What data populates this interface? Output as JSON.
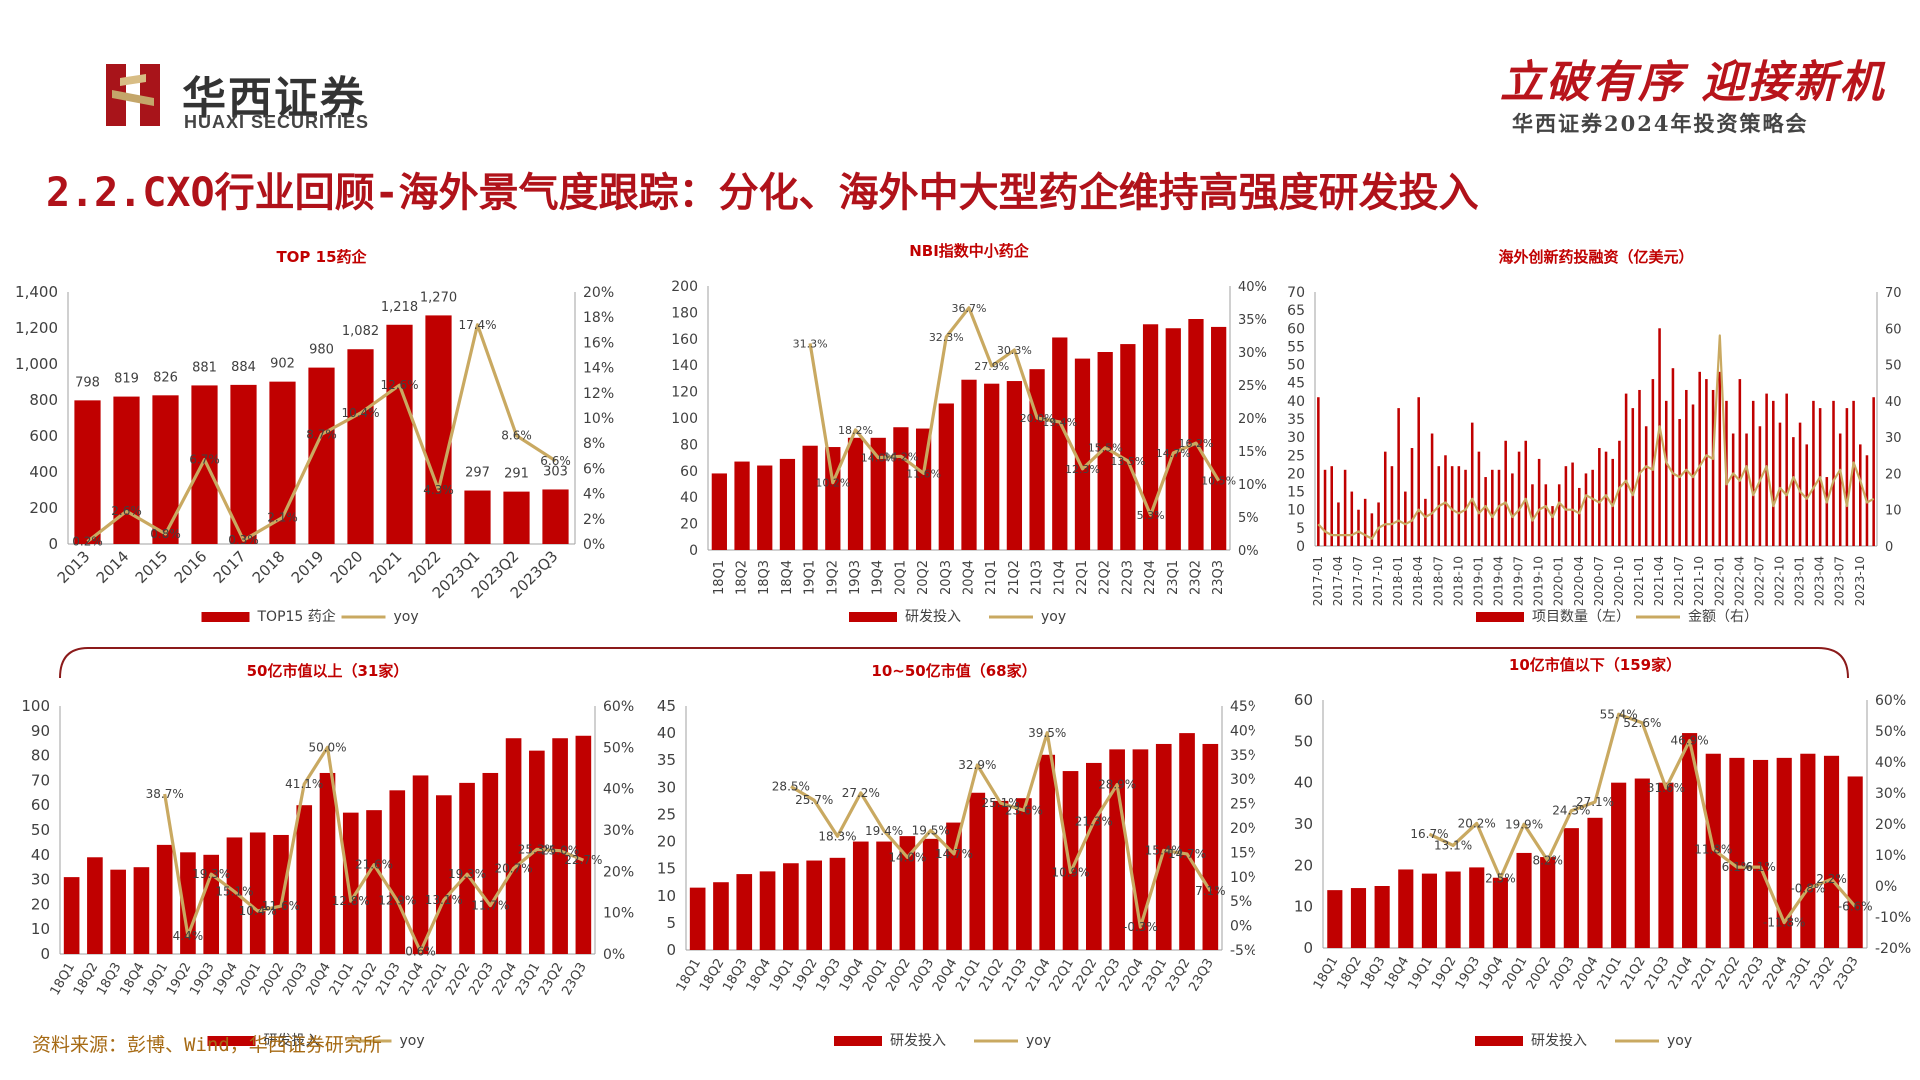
{
  "header": {
    "brand_cn": "华西证券",
    "brand_en": "HUAXI SECURITIES",
    "slogan": "立破有序 迎接新机",
    "sub_slogan": "华西证券2024年投资策略会",
    "title": "2.2.CXO行业回顾-海外景气度跟踪：分化、海外中大型药企维持高强度研发投入"
  },
  "footer": {
    "source": "资料来源：彭博、Wind，华西证券研究所"
  },
  "colors": {
    "bar": "#c00000",
    "line": "#c9a961",
    "title": "#b0121a",
    "panel_title": "#c00000"
  },
  "chart_data": [
    {
      "type": "bar",
      "title": "TOP 15药企",
      "categories": [
        "2013",
        "2014",
        "2015",
        "2016",
        "2017",
        "2018",
        "2019",
        "2020",
        "2021",
        "2022",
        "2023Q1",
        "2023Q2",
        "2023Q3"
      ],
      "series": [
        {
          "name": "TOP15 药企",
          "type": "bar",
          "axis": "left",
          "values": [
            798,
            819,
            826,
            881,
            884,
            902,
            980,
            1082,
            1218,
            1270,
            297,
            291,
            303
          ]
        },
        {
          "name": "yoy",
          "type": "line",
          "axis": "right",
          "values": [
            0.2,
            2.6,
            0.8,
            6.7,
            0.3,
            2.1,
            8.7,
            10.4,
            12.6,
            4.3,
            17.4,
            8.6,
            6.6
          ]
        }
      ],
      "bar_labels": [
        "798",
        "819",
        "826",
        "881",
        "884",
        "902",
        "980",
        "1,082",
        "1,218",
        "1,270",
        "297",
        "291",
        "303"
      ],
      "line_labels": [
        "0.2%",
        "2.6%",
        "0.8%",
        "6.7%",
        "0.3%",
        "2.1%",
        "8.7%",
        "10.4%",
        "12.6%",
        "4.3%",
        "17.4%",
        "8.6%",
        "6.6%"
      ],
      "ylim_left": [
        0,
        1400
      ],
      "yticks_left": [
        "0",
        "200",
        "400",
        "600",
        "800",
        "1,000",
        "1,200",
        "1,400"
      ],
      "ylim_right": [
        0,
        20
      ],
      "yticks_right": [
        "0%",
        "2%",
        "4%",
        "6%",
        "8%",
        "10%",
        "12%",
        "14%",
        "16%",
        "18%",
        "20%"
      ],
      "legend": "bottom"
    },
    {
      "type": "bar",
      "title": "NBI指数中小药企",
      "categories": [
        "18Q1",
        "18Q2",
        "18Q3",
        "18Q4",
        "19Q1",
        "19Q2",
        "19Q3",
        "19Q4",
        "20Q1",
        "20Q2",
        "20Q3",
        "20Q4",
        "21Q1",
        "21Q2",
        "21Q3",
        "21Q4",
        "22Q1",
        "22Q2",
        "22Q3",
        "22Q4",
        "23Q1",
        "23Q2",
        "23Q3"
      ],
      "series": [
        {
          "name": "研发投入",
          "type": "bar",
          "axis": "left",
          "values": [
            58,
            67,
            64,
            69,
            79,
            78,
            85,
            85,
            93,
            92,
            111,
            129,
            126,
            128,
            137,
            161,
            145,
            150,
            156,
            171,
            168,
            175,
            169
          ]
        },
        {
          "name": "yoy",
          "type": "line",
          "axis": "right",
          "values": [
            null,
            null,
            null,
            null,
            31.3,
            10.2,
            18.2,
            14.0,
            14.2,
            11.6,
            32.3,
            36.7,
            27.9,
            30.3,
            20.0,
            19.4,
            12.3,
            15.5,
            13.5,
            5.3,
            14.7,
            16.2,
            10.5
          ]
        }
      ],
      "line_labels": [
        "",
        "",
        "",
        "",
        "31.3%",
        "10.2%",
        "18.2%",
        "14.0%",
        "14.2%",
        "11.6%",
        "32.3%",
        "36.7%",
        "27.9%",
        "30.3%",
        "20.0%",
        "19.4%",
        "12.3%",
        "15.5%",
        "13.5%",
        "5.3%",
        "14.7%",
        "16.2%",
        "10.5%"
      ],
      "ylim_left": [
        0,
        200
      ],
      "yticks_left": [
        "0",
        "20",
        "40",
        "60",
        "80",
        "100",
        "120",
        "140",
        "160",
        "180",
        "200"
      ],
      "ylim_right": [
        0,
        40
      ],
      "yticks_right": [
        "0%",
        "5%",
        "10%",
        "15%",
        "20%",
        "25%",
        "30%",
        "35%",
        "40%"
      ],
      "legend": "bottom"
    },
    {
      "type": "bar",
      "title": "海外创新药投融资（亿美元）",
      "categories": [
        "2017-01",
        "2017-02",
        "2017-03",
        "2017-04",
        "2017-05",
        "2017-06",
        "2017-07",
        "2017-08",
        "2017-09",
        "2017-10",
        "2017-11",
        "2017-12",
        "2018-01",
        "2018-02",
        "2018-03",
        "2018-04",
        "2018-05",
        "2018-06",
        "2018-07",
        "2018-08",
        "2018-09",
        "2018-10",
        "2018-11",
        "2018-12",
        "2019-01",
        "2019-02",
        "2019-03",
        "2019-04",
        "2019-05",
        "2019-06",
        "2019-07",
        "2019-08",
        "2019-09",
        "2019-10",
        "2019-11",
        "2019-12",
        "2020-01",
        "2020-02",
        "2020-03",
        "2020-04",
        "2020-05",
        "2020-06",
        "2020-07",
        "2020-08",
        "2020-09",
        "2020-10",
        "2020-11",
        "2020-12",
        "2021-01",
        "2021-02",
        "2021-03",
        "2021-04",
        "2021-05",
        "2021-06",
        "2021-07",
        "2021-08",
        "2021-09",
        "2021-10",
        "2021-11",
        "2021-12",
        "2022-01",
        "2022-02",
        "2022-03",
        "2022-04",
        "2022-05",
        "2022-06",
        "2022-07",
        "2022-08",
        "2022-09",
        "2022-10",
        "2022-11",
        "2022-12",
        "2023-01",
        "2023-02",
        "2023-03",
        "2023-04",
        "2023-05",
        "2023-06",
        "2023-07",
        "2023-08",
        "2023-09",
        "2023-10",
        "2023-11",
        "2023-12"
      ],
      "xtick_labels": [
        "2017-01",
        "2017-04",
        "2017-07",
        "2017-10",
        "2018-01",
        "2018-04",
        "2018-07",
        "2018-10",
        "2019-01",
        "2019-04",
        "2019-07",
        "2019-10",
        "2020-01",
        "2020-04",
        "2020-07",
        "2020-10",
        "2021-01",
        "2021-04",
        "2021-07",
        "2021-10",
        "2022-01",
        "2022-04",
        "2022-07",
        "2022-10",
        "2023-01",
        "2023-04",
        "2023-07",
        "2023-10"
      ],
      "series": [
        {
          "name": "项目数量（左）",
          "type": "bar",
          "axis": "left",
          "values": [
            41,
            21,
            22,
            12,
            21,
            15,
            10,
            13,
            9,
            12,
            26,
            22,
            38,
            15,
            27,
            41,
            13,
            31,
            22,
            25,
            22,
            22,
            21,
            34,
            26,
            19,
            21,
            21,
            29,
            20,
            26,
            29,
            17,
            24,
            17,
            11,
            17,
            22,
            23,
            16,
            20,
            21,
            27,
            26,
            24,
            29,
            42,
            38,
            43,
            33,
            46,
            60,
            40,
            49,
            35,
            43,
            39,
            48,
            46,
            43,
            48,
            40,
            31,
            46,
            31,
            40,
            33,
            42,
            40,
            34,
            42,
            30,
            34,
            28,
            40,
            38,
            19,
            40,
            31,
            38,
            40,
            28,
            25,
            41
          ]
        },
        {
          "name": "金额（右）",
          "type": "line",
          "axis": "right",
          "values": [
            6,
            4,
            3,
            3,
            3,
            3,
            4,
            3,
            2,
            5,
            6,
            6,
            7,
            6,
            7,
            10,
            8,
            9,
            11,
            12,
            10,
            9,
            10,
            13,
            9,
            11,
            8,
            11,
            12,
            8,
            10,
            13,
            7,
            10,
            11,
            8,
            12,
            10,
            10,
            9,
            14,
            13,
            12,
            14,
            11,
            16,
            18,
            14,
            20,
            22,
            21,
            33,
            23,
            20,
            19,
            21,
            19,
            22,
            25,
            24,
            58,
            17,
            20,
            18,
            22,
            14,
            18,
            22,
            11,
            16,
            14,
            19,
            15,
            13,
            16,
            19,
            12,
            18,
            21,
            11,
            23,
            18,
            12,
            13
          ]
        }
      ],
      "ylim_left": [
        0,
        70
      ],
      "yticks_left": [
        "0",
        "5",
        "10",
        "15",
        "20",
        "25",
        "30",
        "35",
        "40",
        "45",
        "50",
        "55",
        "60",
        "65",
        "70"
      ],
      "ylim_right": [
        0,
        70
      ],
      "yticks_right": [
        "0",
        "10",
        "20",
        "30",
        "40",
        "50",
        "60",
        "70"
      ],
      "legend": "bottom"
    },
    {
      "type": "bar",
      "title": "50亿市值以上（31家）",
      "categories": [
        "18Q1",
        "18Q2",
        "18Q3",
        "18Q4",
        "19Q1",
        "19Q2",
        "19Q3",
        "19Q4",
        "20Q1",
        "20Q2",
        "20Q3",
        "20Q4",
        "21Q1",
        "21Q2",
        "21Q3",
        "21Q4",
        "22Q1",
        "22Q2",
        "22Q3",
        "22Q4",
        "23Q1",
        "23Q2",
        "23Q3"
      ],
      "series": [
        {
          "name": "研发投入",
          "type": "bar",
          "axis": "left",
          "values": [
            31,
            39,
            34,
            35,
            44,
            41,
            40,
            47,
            49,
            48,
            60,
            73,
            57,
            58,
            66,
            72,
            64,
            69,
            73,
            87,
            82,
            87,
            88
          ]
        },
        {
          "name": "yoy",
          "type": "line",
          "axis": "right",
          "values": [
            null,
            null,
            null,
            null,
            38.7,
            4.4,
            19.3,
            15.1,
            10.4,
            11.6,
            41.1,
            50.0,
            12.8,
            21.6,
            12.9,
            0.6,
            13.1,
            19.3,
            11.7,
            20.7,
            25.3,
            25.0,
            22.7
          ]
        }
      ],
      "line_labels": [
        "",
        "",
        "",
        "",
        "38.7%",
        "4.4%",
        "19.3%",
        "15.1%",
        "10.4%",
        "11.6%",
        "41.1%",
        "50.0%",
        "12.8%",
        "21.6%",
        "12.9%",
        "0.6%",
        "13.1%",
        "19.3%",
        "11.7%",
        "20.7%",
        "25.3%",
        "25.0%",
        "22.7%"
      ],
      "ylim_left": [
        0,
        100
      ],
      "yticks_left": [
        "0",
        "10",
        "20",
        "30",
        "40",
        "50",
        "60",
        "70",
        "80",
        "90",
        "100"
      ],
      "ylim_right": [
        0,
        60
      ],
      "yticks_right": [
        "0%",
        "10%",
        "20%",
        "30%",
        "40%",
        "50%",
        "60%"
      ],
      "legend": "bottom"
    },
    {
      "type": "bar",
      "title": "10~50亿市值（68家）",
      "categories": [
        "18Q1",
        "18Q2",
        "18Q3",
        "18Q4",
        "19Q1",
        "19Q2",
        "19Q3",
        "19Q4",
        "20Q1",
        "20Q2",
        "20Q3",
        "20Q4",
        "21Q1",
        "21Q2",
        "21Q3",
        "21Q4",
        "22Q1",
        "22Q2",
        "22Q3",
        "22Q4",
        "23Q1",
        "23Q2",
        "23Q3"
      ],
      "series": [
        {
          "name": "研发投入",
          "type": "bar",
          "axis": "left",
          "values": [
            11.5,
            12.5,
            14,
            14.5,
            16,
            16.5,
            17,
            20,
            20,
            21,
            20.5,
            23.5,
            29,
            27.5,
            28,
            36,
            33,
            34.5,
            37,
            37,
            38,
            40,
            38
          ]
        },
        {
          "name": "yoy",
          "type": "line",
          "axis": "right",
          "values": [
            null,
            null,
            null,
            null,
            28.5,
            25.7,
            18.3,
            27.2,
            19.4,
            14.0,
            19.5,
            14.7,
            32.9,
            25.1,
            23.6,
            39.5,
            10.9,
            21.3,
            28.9,
            -0.3,
            15.4,
            14.7,
            7.1
          ]
        }
      ],
      "line_labels": [
        "",
        "",
        "",
        "",
        "28.5%",
        "25.7%",
        "18.3%",
        "27.2%",
        "19.4%",
        "14.0%",
        "19.5%",
        "14.7%",
        "32.9%",
        "25.1%",
        "23.6%",
        "39.5%",
        "10.9%",
        "21.3%",
        "28.9%",
        "-0.3%",
        "15.4%",
        "14.7%",
        "7.1%"
      ],
      "ylim_left": [
        0,
        45
      ],
      "yticks_left": [
        "0",
        "5",
        "10",
        "15",
        "20",
        "25",
        "30",
        "35",
        "40",
        "45"
      ],
      "ylim_right": [
        -5,
        45
      ],
      "yticks_right": [
        "-5%",
        "0%",
        "5%",
        "10%",
        "15%",
        "20%",
        "25%",
        "30%",
        "35%",
        "40%",
        "45%"
      ],
      "legend": "bottom"
    },
    {
      "type": "bar",
      "title": "10亿市值以下（159家）",
      "categories": [
        "18Q1",
        "18Q2",
        "18Q3",
        "18Q4",
        "19Q1",
        "19Q2",
        "19Q3",
        "19Q4",
        "20Q1",
        "20Q2",
        "20Q3",
        "20Q4",
        "21Q1",
        "21Q2",
        "21Q3",
        "21Q4",
        "22Q1",
        "22Q2",
        "22Q3",
        "22Q4",
        "23Q1",
        "23Q2",
        "23Q3"
      ],
      "series": [
        {
          "name": "研发投入",
          "type": "bar",
          "axis": "left",
          "values": [
            14,
            14.5,
            15,
            19,
            18,
            18.5,
            19.5,
            17,
            23,
            22,
            29,
            31.5,
            40,
            41,
            40,
            52,
            47,
            46,
            45.5,
            46,
            47,
            46.5,
            41.5
          ]
        },
        {
          "name": "yoy",
          "type": "line",
          "axis": "right",
          "values": [
            null,
            null,
            null,
            null,
            16.7,
            13.1,
            20.2,
            2.5,
            19.9,
            8.2,
            24.3,
            27.1,
            55.4,
            52.6,
            31.6,
            46.9,
            11.8,
            6.1,
            6.1,
            -11.8,
            -0.8,
            2.2,
            -6.6
          ]
        }
      ],
      "line_labels": [
        "",
        "",
        "",
        "",
        "16.7%",
        "13.1%",
        "20.2%",
        "2.5%",
        "19.9%",
        "8.2%",
        "24.3%",
        "27.1%",
        "55.4%",
        "52.6%",
        "31.6%",
        "46.9%",
        "11.8%",
        "6.1%",
        "6.1%",
        "-11.8%",
        "-0.8%",
        "2.2%",
        "-6.6%"
      ],
      "ylim_left": [
        0,
        60
      ],
      "yticks_left": [
        "0",
        "10",
        "20",
        "30",
        "40",
        "50",
        "60"
      ],
      "ylim_right": [
        -20,
        60
      ],
      "yticks_right": [
        "-20%",
        "-10%",
        "0%",
        "10%",
        "20%",
        "30%",
        "40%",
        "50%",
        "60%"
      ],
      "legend": "bottom"
    }
  ]
}
